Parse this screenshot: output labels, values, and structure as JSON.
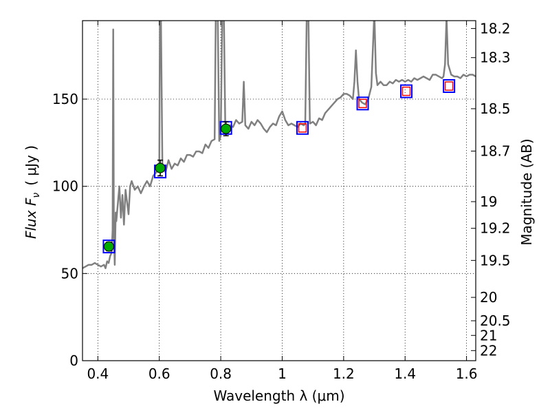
{
  "chart_data": {
    "type": "line",
    "xlabel": "Wavelength  λ (μm)",
    "ylabel": "Flux  F",
    "ylabel_sub": "ν",
    "ylabel_unit": "( μJy )",
    "y2label": "Magnitude (AB)",
    "xlim": [
      0.35,
      1.63
    ],
    "ylim": [
      0,
      195
    ],
    "grid": true,
    "x_ticks": [
      0.4,
      0.6,
      0.8,
      1.0,
      1.2,
      1.4,
      1.6
    ],
    "x_tick_labels": [
      "0.4",
      "0.6",
      "0.8",
      "1",
      "1.2",
      "1.4",
      "1.6"
    ],
    "y_ticks": [
      0,
      50,
      100,
      150
    ],
    "y_tick_labels": [
      "0",
      "50",
      "100",
      "150"
    ],
    "y2_ticks": [
      {
        "label": "18.2",
        "flux": 190.5
      },
      {
        "label": "18.3",
        "flux": 173.8
      },
      {
        "label": "18.5",
        "flux": 144.5
      },
      {
        "label": "18.7",
        "flux": 120.2
      },
      {
        "label": "19",
        "flux": 91.2
      },
      {
        "label": "19.2",
        "flux": 75.9
      },
      {
        "label": "19.5",
        "flux": 57.5
      },
      {
        "label": "20",
        "flux": 36.3
      },
      {
        "label": "20.5",
        "flux": 22.9
      },
      {
        "label": "21",
        "flux": 14.5
      },
      {
        "label": "22",
        "flux": 5.8
      }
    ],
    "series": [
      {
        "type": "line",
        "color": "#808080",
        "points": [
          [
            0.35,
            53
          ],
          [
            0.36,
            54
          ],
          [
            0.37,
            55
          ],
          [
            0.38,
            55
          ],
          [
            0.39,
            56
          ],
          [
            0.4,
            55
          ],
          [
            0.41,
            54
          ],
          [
            0.42,
            55
          ],
          [
            0.425,
            53
          ],
          [
            0.43,
            57
          ],
          [
            0.435,
            56
          ],
          [
            0.44,
            60
          ],
          [
            0.445,
            62
          ],
          [
            0.448,
            75
          ],
          [
            0.45,
            190
          ],
          [
            0.452,
            75
          ],
          [
            0.455,
            55
          ],
          [
            0.458,
            85
          ],
          [
            0.46,
            80
          ],
          [
            0.465,
            90
          ],
          [
            0.47,
            100
          ],
          [
            0.475,
            82
          ],
          [
            0.48,
            95
          ],
          [
            0.485,
            78
          ],
          [
            0.49,
            98
          ],
          [
            0.5,
            84
          ],
          [
            0.505,
            100
          ],
          [
            0.51,
            103
          ],
          [
            0.52,
            98
          ],
          [
            0.53,
            100
          ],
          [
            0.54,
            96
          ],
          [
            0.55,
            100
          ],
          [
            0.56,
            103
          ],
          [
            0.57,
            100
          ],
          [
            0.58,
            106
          ],
          [
            0.59,
            108
          ],
          [
            0.595,
            110
          ],
          [
            0.6,
            112
          ],
          [
            0.602,
            200
          ],
          [
            0.605,
            200
          ],
          [
            0.61,
            112
          ],
          [
            0.62,
            108
          ],
          [
            0.63,
            115
          ],
          [
            0.64,
            110
          ],
          [
            0.65,
            113
          ],
          [
            0.66,
            112
          ],
          [
            0.67,
            116
          ],
          [
            0.68,
            114
          ],
          [
            0.69,
            118
          ],
          [
            0.7,
            118
          ],
          [
            0.71,
            117
          ],
          [
            0.72,
            120
          ],
          [
            0.73,
            120
          ],
          [
            0.74,
            119
          ],
          [
            0.75,
            124
          ],
          [
            0.76,
            122
          ],
          [
            0.77,
            126
          ],
          [
            0.78,
            127
          ],
          [
            0.784,
            200
          ],
          [
            0.79,
            200
          ],
          [
            0.795,
            126
          ],
          [
            0.8,
            129
          ],
          [
            0.805,
            200
          ],
          [
            0.81,
            200
          ],
          [
            0.815,
            130
          ],
          [
            0.82,
            132
          ],
          [
            0.83,
            135
          ],
          [
            0.84,
            134
          ],
          [
            0.85,
            138
          ],
          [
            0.86,
            136
          ],
          [
            0.87,
            137
          ],
          [
            0.875,
            160
          ],
          [
            0.88,
            135
          ],
          [
            0.89,
            133
          ],
          [
            0.9,
            137
          ],
          [
            0.91,
            135
          ],
          [
            0.92,
            138
          ],
          [
            0.93,
            136
          ],
          [
            0.94,
            133
          ],
          [
            0.95,
            131
          ],
          [
            0.96,
            134
          ],
          [
            0.97,
            136
          ],
          [
            0.98,
            135
          ],
          [
            0.99,
            140
          ],
          [
            1.0,
            143
          ],
          [
            1.01,
            138
          ],
          [
            1.02,
            135
          ],
          [
            1.03,
            136
          ],
          [
            1.04,
            135
          ],
          [
            1.05,
            134
          ],
          [
            1.06,
            136
          ],
          [
            1.07,
            135
          ],
          [
            1.075,
            136
          ],
          [
            1.08,
            200
          ],
          [
            1.085,
            200
          ],
          [
            1.09,
            136
          ],
          [
            1.1,
            137
          ],
          [
            1.11,
            135
          ],
          [
            1.12,
            139
          ],
          [
            1.13,
            138
          ],
          [
            1.14,
            142
          ],
          [
            1.15,
            144
          ],
          [
            1.16,
            146
          ],
          [
            1.17,
            148
          ],
          [
            1.18,
            150
          ],
          [
            1.19,
            151
          ],
          [
            1.2,
            153
          ],
          [
            1.21,
            153
          ],
          [
            1.22,
            152
          ],
          [
            1.23,
            150
          ],
          [
            1.235,
            160
          ],
          [
            1.24,
            178
          ],
          [
            1.245,
            160
          ],
          [
            1.25,
            150
          ],
          [
            1.26,
            148
          ],
          [
            1.27,
            147
          ],
          [
            1.28,
            150
          ],
          [
            1.29,
            157
          ],
          [
            1.3,
            200
          ],
          [
            1.305,
            165
          ],
          [
            1.31,
            158
          ],
          [
            1.32,
            160
          ],
          [
            1.33,
            158
          ],
          [
            1.34,
            158
          ],
          [
            1.35,
            160
          ],
          [
            1.36,
            159
          ],
          [
            1.37,
            161
          ],
          [
            1.38,
            160
          ],
          [
            1.39,
            161
          ],
          [
            1.4,
            160
          ],
          [
            1.41,
            161
          ],
          [
            1.42,
            160
          ],
          [
            1.43,
            162
          ],
          [
            1.44,
            161
          ],
          [
            1.45,
            162
          ],
          [
            1.46,
            163
          ],
          [
            1.47,
            162
          ],
          [
            1.48,
            161
          ],
          [
            1.49,
            164
          ],
          [
            1.5,
            164
          ],
          [
            1.51,
            163
          ],
          [
            1.52,
            162
          ],
          [
            1.525,
            163
          ],
          [
            1.53,
            170
          ],
          [
            1.535,
            197
          ],
          [
            1.54,
            170
          ],
          [
            1.55,
            164
          ],
          [
            1.56,
            163
          ],
          [
            1.57,
            163
          ],
          [
            1.58,
            162
          ],
          [
            1.59,
            164
          ],
          [
            1.6,
            163
          ],
          [
            1.61,
            164
          ],
          [
            1.62,
            164
          ],
          [
            1.63,
            163
          ]
        ]
      },
      {
        "type": "blue_squares",
        "color": "#0000ff",
        "points": [
          [
            0.436,
            65.5
          ],
          [
            0.603,
            108.5
          ],
          [
            0.817,
            133.5
          ],
          [
            1.066,
            133.5
          ],
          [
            1.262,
            147.5
          ],
          [
            1.404,
            154.5
          ],
          [
            1.543,
            157.5
          ]
        ]
      },
      {
        "type": "red_squares",
        "color": "#ff0000",
        "points": [
          [
            1.066,
            133.5
          ],
          [
            1.262,
            147.5
          ],
          [
            1.404,
            154.5
          ],
          [
            1.543,
            157.5
          ]
        ]
      },
      {
        "type": "green_points",
        "color": "#00aa00",
        "points": [
          [
            0.436,
            65.5,
            2.5
          ],
          [
            0.603,
            110.5,
            4.5
          ],
          [
            0.817,
            133,
            4
          ]
        ]
      }
    ]
  }
}
